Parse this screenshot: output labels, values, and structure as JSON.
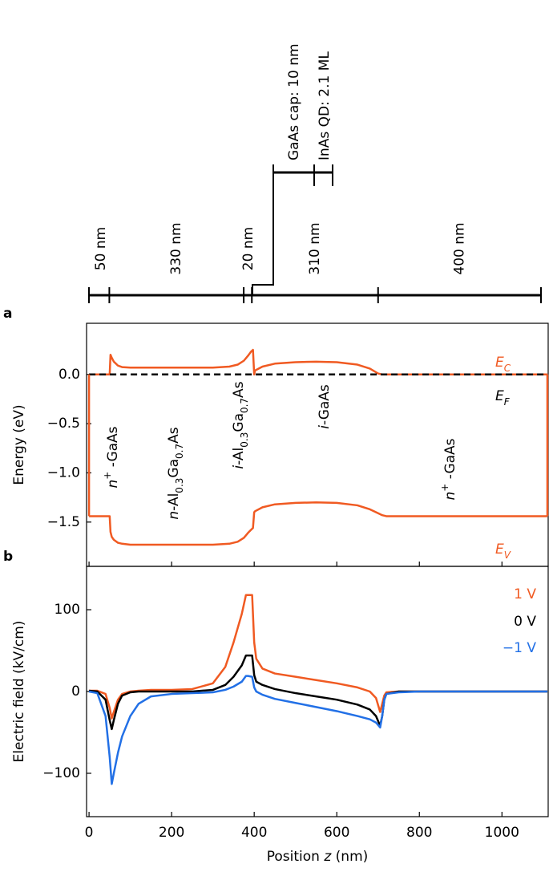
{
  "layer_diagram": {
    "layers": [
      {
        "thickness": 50,
        "label": "50 nm"
      },
      {
        "thickness": 330,
        "label": "330 nm"
      },
      {
        "thickness": 20,
        "label": "20 nm"
      },
      {
        "thickness": 310,
        "label": "310 nm"
      },
      {
        "thickness": 400,
        "label": "400 nm"
      }
    ],
    "inset": [
      {
        "label": "GaAs cap: 10 nm"
      },
      {
        "label": "InAs QD: 2.1 ML"
      }
    ]
  },
  "chart_data": [
    {
      "type": "line",
      "panel_label": "a",
      "ylabel": "Energy (eV)",
      "xlim": [
        -6,
        1112
      ],
      "ylim": [
        -1.95,
        0.52
      ],
      "yticks": [
        {
          "value": 0,
          "label": "0.0"
        },
        {
          "value": -0.5,
          "label": "−0.5"
        },
        {
          "value": -1,
          "label": "−1.0"
        },
        {
          "value": -1.5,
          "label": "−1.5"
        }
      ],
      "x": [
        0,
        45,
        50,
        52,
        55,
        60,
        70,
        80,
        100,
        150,
        200,
        300,
        340,
        360,
        375,
        385,
        392,
        397,
        400,
        402,
        420,
        450,
        500,
        550,
        600,
        650,
        680,
        700,
        710,
        720,
        800,
        1000,
        1110
      ],
      "series": [
        {
          "name": "E",
          "name_sub": "C",
          "color": "#f05a22",
          "linestyle": "solid",
          "values": [
            0,
            0,
            0,
            0.2,
            0.17,
            0.13,
            0.09,
            0.075,
            0.07,
            0.07,
            0.07,
            0.07,
            0.08,
            0.1,
            0.14,
            0.19,
            0.23,
            0.25,
            0.0,
            0.04,
            0.08,
            0.11,
            0.125,
            0.13,
            0.125,
            0.1,
            0.06,
            0.01,
            0,
            0,
            0,
            0,
            0
          ]
        },
        {
          "name": "E",
          "name_sub": "F",
          "color": "#000000",
          "linestyle": "dashed",
          "values": [
            0,
            0,
            0,
            0,
            0,
            0,
            0,
            0,
            0,
            0,
            0,
            0,
            0,
            0,
            0,
            0,
            0,
            0,
            0,
            0,
            0,
            0,
            0,
            0,
            0,
            0,
            0,
            0,
            0,
            0,
            0,
            0,
            0
          ]
        },
        {
          "name": "E",
          "name_sub": "V",
          "color": "#f05a22",
          "linestyle": "solid",
          "values": [
            -1.44,
            -1.44,
            -1.44,
            -1.6,
            -1.65,
            -1.68,
            -1.71,
            -1.72,
            -1.73,
            -1.73,
            -1.73,
            -1.73,
            -1.72,
            -1.7,
            -1.66,
            -1.61,
            -1.58,
            -1.56,
            -1.4,
            -1.39,
            -1.35,
            -1.32,
            -1.305,
            -1.3,
            -1.305,
            -1.33,
            -1.37,
            -1.41,
            -1.43,
            -1.44,
            -1.44,
            -1.44,
            -1.44
          ]
        }
      ],
      "annotations": [
        {
          "parts": [
            {
              "text": "n",
              "style": "italic"
            },
            {
              "text": "+",
              "style": "sup"
            },
            {
              "text": " -GaAs",
              "style": "normal"
            }
          ]
        },
        {
          "parts": [
            {
              "text": "n",
              "style": "italic"
            },
            {
              "text": "-Al",
              "style": "normal"
            },
            {
              "text": "0.3",
              "style": "sub"
            },
            {
              "text": "Ga",
              "style": "normal"
            },
            {
              "text": "0.7",
              "style": "sub"
            },
            {
              "text": "As",
              "style": "normal"
            }
          ]
        },
        {
          "parts": [
            {
              "text": "i",
              "style": "italic"
            },
            {
              "text": "-Al",
              "style": "normal"
            },
            {
              "text": "0.3",
              "style": "sub"
            },
            {
              "text": "Ga",
              "style": "normal"
            },
            {
              "text": "0.7",
              "style": "sub"
            },
            {
              "text": "As",
              "style": "normal"
            }
          ]
        },
        {
          "parts": [
            {
              "text": "i",
              "style": "italic"
            },
            {
              "text": "-GaAs",
              "style": "normal"
            }
          ]
        },
        {
          "parts": [
            {
              "text": "n",
              "style": "italic"
            },
            {
              "text": "+",
              "style": "sup"
            },
            {
              "text": " -GaAs",
              "style": "normal"
            }
          ]
        }
      ]
    },
    {
      "type": "line",
      "panel_label": "b",
      "ylabel": "Electric field (kV/cm)",
      "xlabel_parts": [
        {
          "text": "Position ",
          "style": "normal"
        },
        {
          "text": "z",
          "style": "italic"
        },
        {
          "text": " (nm)",
          "style": "normal"
        }
      ],
      "xlim": [
        -6,
        1112
      ],
      "ylim": [
        -153,
        153
      ],
      "xticks": [
        0,
        200,
        400,
        600,
        800,
        1000
      ],
      "yticks": [
        {
          "value": -100,
          "label": "−100"
        },
        0,
        100
      ],
      "x": [
        0,
        20,
        40,
        50,
        55,
        60,
        70,
        80,
        100,
        120,
        150,
        200,
        250,
        300,
        330,
        350,
        370,
        380,
        385,
        395,
        400,
        405,
        420,
        450,
        500,
        550,
        600,
        650,
        680,
        695,
        705,
        710,
        715,
        720,
        750,
        800,
        1000,
        1110
      ],
      "series": [
        {
          "name": "1 V",
          "color": "#f05a22",
          "linestyle": "solid",
          "values": [
            1,
            1,
            -3,
            -20,
            -33,
            -25,
            -10,
            -3,
            0,
            1,
            2,
            2,
            3,
            10,
            30,
            60,
            95,
            118,
            118,
            118,
            60,
            40,
            28,
            22,
            18,
            14,
            10,
            5,
            0,
            -8,
            -25,
            -15,
            -5,
            -1,
            0,
            0,
            0,
            0
          ]
        },
        {
          "name": "0 V",
          "color": "#000000",
          "linestyle": "solid",
          "values": [
            1,
            0,
            -10,
            -35,
            -46,
            -35,
            -15,
            -5,
            -1,
            0,
            0,
            0,
            0,
            2,
            8,
            18,
            32,
            44,
            44,
            44,
            20,
            12,
            8,
            3,
            -2,
            -6,
            -10,
            -16,
            -22,
            -30,
            -42,
            -30,
            -10,
            -3,
            0,
            0,
            0,
            0
          ]
        },
        {
          "name": "−1 V",
          "color": "#2270e6",
          "linestyle": "solid",
          "values": [
            0,
            -2,
            -30,
            -80,
            -113,
            -100,
            -75,
            -55,
            -30,
            -15,
            -6,
            -3,
            -2,
            -1,
            2,
            6,
            12,
            19,
            19,
            18,
            5,
            0,
            -4,
            -9,
            -14,
            -19,
            -24,
            -30,
            -34,
            -38,
            -44,
            -30,
            -10,
            -3,
            -1,
            0,
            0,
            0
          ]
        }
      ]
    }
  ]
}
